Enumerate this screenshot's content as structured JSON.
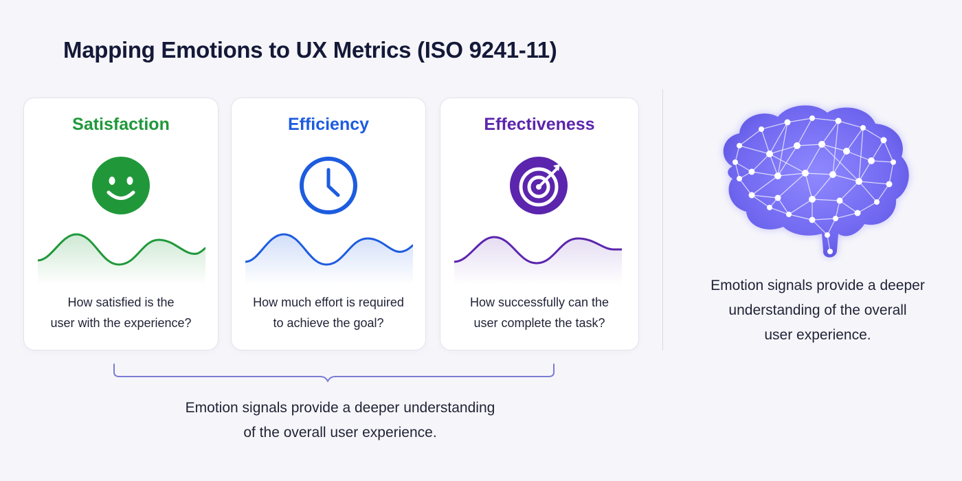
{
  "title": "Mapping Emotions to UX Metrics (ISO 9241-11)",
  "cards": [
    {
      "title": "Satisfaction",
      "color": "#20983a",
      "icon": "smiley-face-icon",
      "question_lines": [
        "How satisfied is the",
        "user with the experience?"
      ]
    },
    {
      "title": "Efficiency",
      "color": "#1d5cdf",
      "icon": "clock-icon",
      "question_lines": [
        "How much effort is required",
        "to achieve the goal?"
      ]
    },
    {
      "title": "Effectiveness",
      "color": "#5b25ad",
      "icon": "target-icon",
      "question_lines": [
        "How successfully can the",
        "user complete the task?"
      ]
    }
  ],
  "bottom_caption": {
    "lines": [
      "Emotion signals provide a deeper understanding",
      "of the overall user experience."
    ]
  },
  "right_panel": {
    "icon": "brain-network-icon",
    "lines": [
      "Emotion signals provide a deeper",
      "understanding of the overall",
      "user experience."
    ]
  },
  "colors": {
    "satisfaction": "#20983a",
    "efficiency": "#1d5cdf",
    "effectiveness": "#5b25ad",
    "bracket": "#7a7cd2",
    "brain": "#7670f0"
  }
}
